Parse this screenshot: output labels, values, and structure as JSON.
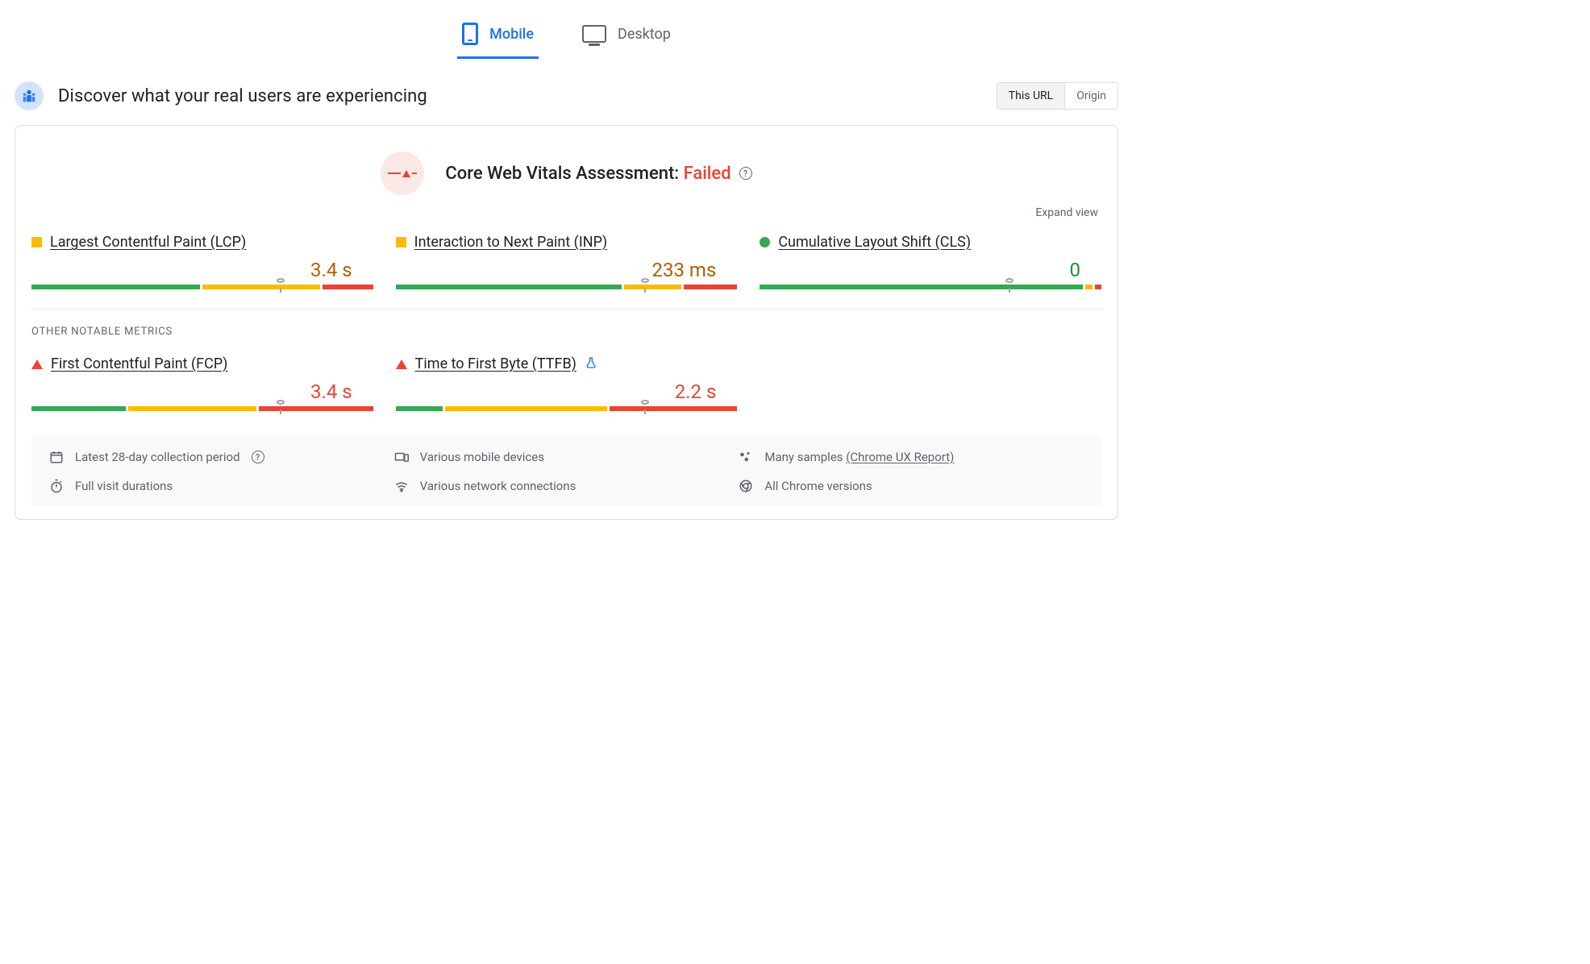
{
  "colors": {
    "accent": "#1a73e8",
    "text_primary": "#202124",
    "text_secondary": "#5f6368",
    "good": "#34a853",
    "warn": "#fbbc04",
    "bad": "#ea4335",
    "warn_text": "#b06000",
    "border": "#dadce0",
    "panel_bg": "#f8f9fa"
  },
  "tabs": {
    "mobile": "Mobile",
    "desktop": "Desktop",
    "active": "mobile"
  },
  "header": {
    "title": "Discover what your real users are experiencing",
    "scope_this_url": "This URL",
    "scope_origin": "Origin",
    "scope_selected": "this_url"
  },
  "assessment": {
    "label": "Core Web Vitals Assessment: ",
    "status": "Failed"
  },
  "expand_label": "Expand view",
  "section_other_label": "OTHER NOTABLE METRICS",
  "metrics": {
    "lcp": {
      "name": "Largest Contentful Paint (LCP)",
      "value": "3.4 s",
      "status_shape": "square",
      "status_color": "#fbbc04",
      "value_color": "#b06000",
      "bar": {
        "good_pct": 50,
        "warn_pct": 35,
        "bad_pct": 15,
        "marker_pct": 73
      }
    },
    "inp": {
      "name": "Interaction to Next Paint (INP)",
      "value": "233 ms",
      "status_shape": "square",
      "status_color": "#fbbc04",
      "value_color": "#b06000",
      "bar": {
        "good_pct": 67,
        "warn_pct": 17,
        "bad_pct": 16,
        "marker_pct": 73
      }
    },
    "cls": {
      "name": "Cumulative Layout Shift (CLS)",
      "value": "0",
      "status_shape": "circle",
      "status_color": "#34a853",
      "value_color": "#1e8e3e",
      "bar": {
        "good_pct": 96,
        "warn_pct": 2,
        "bad_pct": 2,
        "marker_pct": 73
      }
    },
    "fcp": {
      "name": "First Contentful Paint (FCP)",
      "value": "3.4 s",
      "status_shape": "triangle",
      "status_color": "#ea4335",
      "value_color": "#ea4335",
      "bar": {
        "good_pct": 28,
        "warn_pct": 38,
        "bad_pct": 34,
        "marker_pct": 73
      }
    },
    "ttfb": {
      "name": "Time to First Byte (TTFB)",
      "value": "2.2 s",
      "status_shape": "triangle",
      "status_color": "#ea4335",
      "value_color": "#ea4335",
      "experimental": true,
      "bar": {
        "good_pct": 14,
        "warn_pct": 48,
        "bad_pct": 38,
        "marker_pct": 73
      }
    }
  },
  "footer": {
    "period": "Latest 28-day collection period",
    "devices": "Various mobile devices",
    "samples_prefix": "Many samples ",
    "samples_link": "(Chrome UX Report)",
    "durations": "Full visit durations",
    "network": "Various network connections",
    "versions": "All Chrome versions"
  }
}
